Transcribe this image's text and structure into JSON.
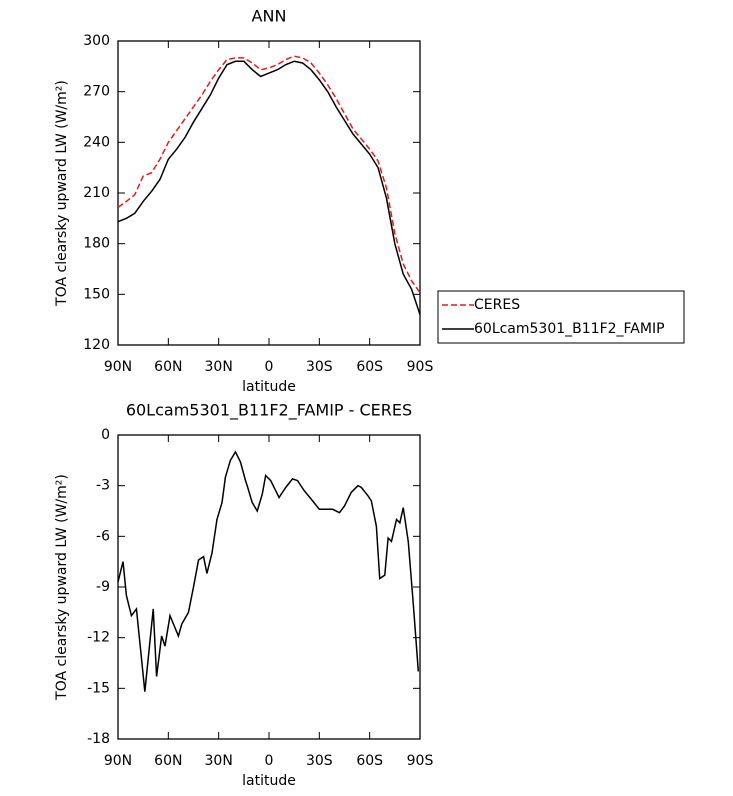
{
  "chart_data": [
    {
      "type": "line",
      "title": "ANN",
      "xlabel": "latitude",
      "ylabel": "TOA clearsky upward LW (W/m²)",
      "x": [
        90,
        85,
        80,
        75,
        70,
        65,
        60,
        55,
        50,
        45,
        40,
        35,
        30,
        25,
        20,
        15,
        10,
        5,
        0,
        -5,
        -10,
        -15,
        -20,
        -25,
        -30,
        -35,
        -40,
        -45,
        -50,
        -55,
        -60,
        -65,
        -70,
        -75,
        -80,
        -85,
        -90
      ],
      "xlim": [
        90,
        -90
      ],
      "xticks": [
        {
          "value": 90,
          "label": "90N"
        },
        {
          "value": 60,
          "label": "60N"
        },
        {
          "value": 30,
          "label": "30N"
        },
        0,
        {
          "value": -30,
          "label": "30S"
        },
        {
          "value": -60,
          "label": "60S"
        },
        {
          "value": -90,
          "label": "90S"
        }
      ],
      "ylim": [
        120,
        300
      ],
      "yticks": [
        120,
        150,
        180,
        210,
        240,
        270,
        300
      ],
      "legend": "right",
      "series": [
        {
          "name": "CERES",
          "color": "#e31a1c",
          "linestyle": "dashed",
          "values": [
            201.5,
            205,
            209,
            220,
            222,
            230,
            240,
            247,
            254,
            261,
            268,
            276,
            283,
            289,
            290,
            290,
            287,
            283,
            284,
            286,
            289,
            291,
            290,
            287,
            281,
            274,
            266,
            257,
            248,
            242,
            236,
            229,
            213,
            186,
            168,
            158,
            151
          ]
        },
        {
          "name": "60Lcam5301_B11F2_FAMIP",
          "color": "#000000",
          "linestyle": "solid",
          "values": [
            193,
            195,
            198,
            205,
            211,
            218,
            230,
            236,
            243,
            252,
            260,
            268,
            278,
            286,
            288,
            288,
            283,
            279,
            281,
            283,
            286,
            288,
            287,
            283,
            277,
            270,
            261,
            253,
            245,
            239,
            233,
            225,
            207,
            180,
            162,
            153,
            138
          ]
        }
      ]
    },
    {
      "type": "line",
      "title": "60Lcam5301_B11F2_FAMIP - CERES",
      "xlabel": "latitude",
      "ylabel": "TOA clearsky upward LW (W/m²)",
      "x": [
        90,
        87,
        85,
        82,
        79,
        74,
        69,
        67,
        64,
        62,
        59,
        54,
        52,
        48,
        45,
        42,
        39,
        37,
        34,
        31,
        28,
        26,
        23,
        20,
        17,
        14,
        13,
        10,
        7,
        4,
        2,
        -1,
        -6,
        -10,
        -14,
        -17,
        -21,
        -26,
        -30,
        -38,
        -42,
        -45,
        -49,
        -53,
        -55,
        -59,
        -61,
        -64,
        -66,
        -69,
        -71,
        -73,
        -76,
        -78,
        -80,
        -83,
        -86,
        -89
      ],
      "xlim": [
        90,
        -90
      ],
      "xticks": [
        {
          "value": 90,
          "label": "90N"
        },
        {
          "value": 60,
          "label": "60N"
        },
        {
          "value": 30,
          "label": "30N"
        },
        0,
        {
          "value": -30,
          "label": "30S"
        },
        {
          "value": -60,
          "label": "60S"
        },
        {
          "value": -90,
          "label": "90S"
        }
      ],
      "ylim": [
        -18,
        0
      ],
      "yticks": [
        -18,
        -15,
        -12,
        -9,
        -6,
        -3,
        0
      ],
      "series": [
        {
          "name": "60Lcam5301_B11F2_FAMIP - CERES",
          "color": "#000000",
          "linestyle": "solid",
          "values": [
            -8.7,
            -7.5,
            -9.5,
            -10.7,
            -10.3,
            -15.2,
            -10.3,
            -14.3,
            -11.9,
            -12.5,
            -10.7,
            -11.9,
            -11.2,
            -10.5,
            -9,
            -7.4,
            -7.2,
            -8.2,
            -7,
            -5,
            -4,
            -2.5,
            -1.5,
            -1,
            -1.6,
            -2.7,
            -3,
            -4,
            -4.5,
            -3.5,
            -2.4,
            -2.7,
            -3.7,
            -3.1,
            -2.6,
            -2.7,
            -3.3,
            -3.9,
            -4.4,
            -4.4,
            -4.6,
            -4.2,
            -3.4,
            -3,
            -3.1,
            -3.6,
            -3.9,
            -5.4,
            -8.5,
            -8.3,
            -6.1,
            -6.3,
            -5,
            -5.2,
            -4.3,
            -6.3,
            -10,
            -14
          ]
        }
      ]
    }
  ]
}
